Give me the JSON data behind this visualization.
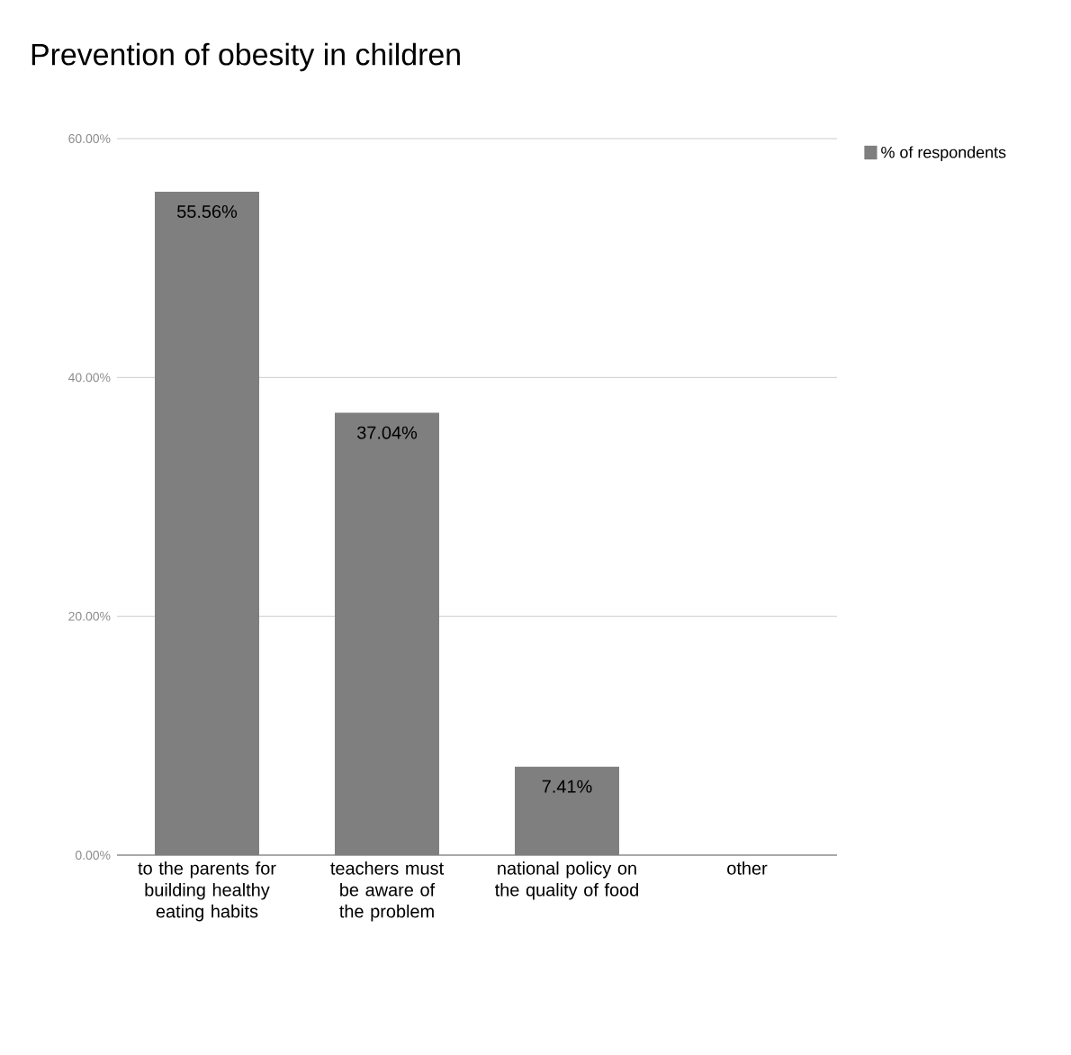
{
  "chart_data": {
    "type": "bar",
    "title": "Prevention of obesity in children",
    "categories": [
      "to the parents for building healthy eating habits",
      "teachers must be aware of the problem",
      "national policy on the quality of food",
      "other"
    ],
    "series": [
      {
        "name": "% of respondents",
        "color": "#7f7f7f",
        "values": [
          55.56,
          37.04,
          7.41,
          0
        ]
      }
    ],
    "value_labels": [
      "55.56%",
      "37.04%",
      "7.41%",
      null
    ],
    "ylim": [
      0,
      60
    ],
    "yticks": [
      {
        "value": 0,
        "label": "0.00%"
      },
      {
        "value": 20,
        "label": "20.00%"
      },
      {
        "value": 40,
        "label": "40.00%"
      },
      {
        "value": 60,
        "label": "60.00%"
      }
    ],
    "grid": "y",
    "legend": "top right"
  }
}
